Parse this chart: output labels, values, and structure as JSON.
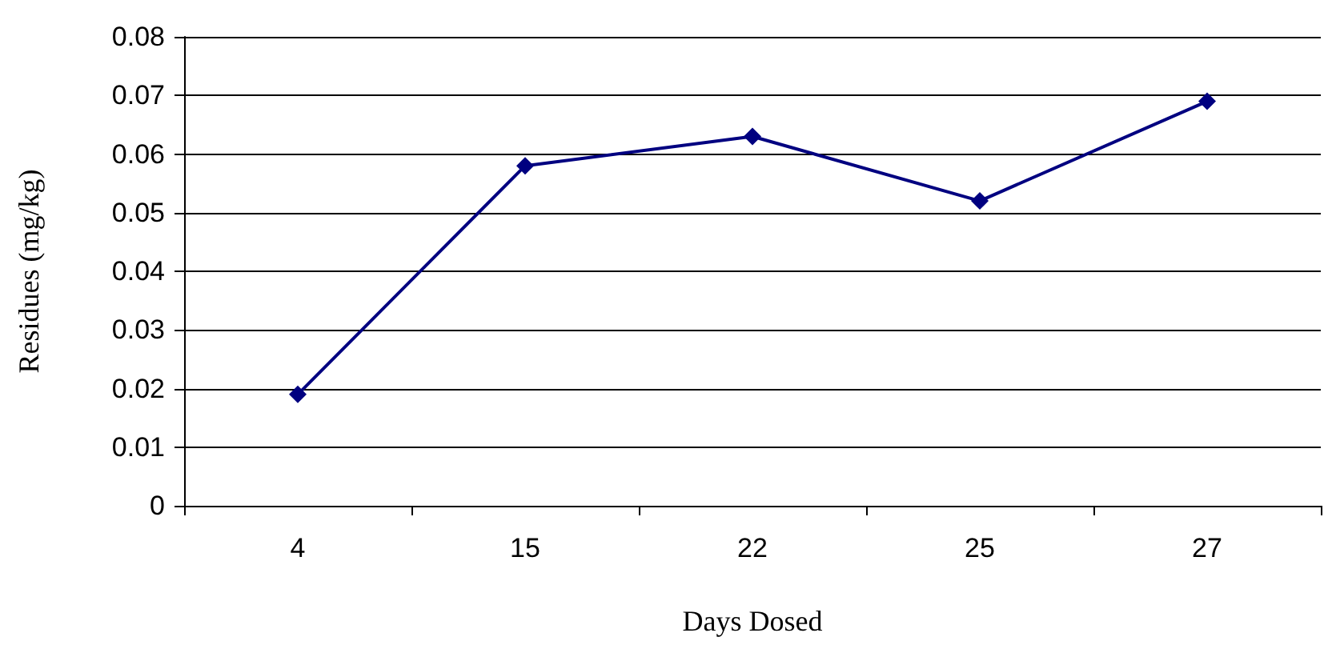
{
  "chart_data": {
    "type": "line",
    "xlabel": "Days Dosed",
    "ylabel": "Residues (mg/kg)",
    "categories": [
      "4",
      "15",
      "22",
      "25",
      "27"
    ],
    "series": [
      {
        "color": "#000080",
        "values": [
          0.019,
          0.058,
          0.063,
          0.052,
          0.069
        ]
      }
    ],
    "ylim": [
      0,
      0.08
    ],
    "yticks": [
      0,
      0.01,
      0.02,
      0.03,
      0.04,
      0.05,
      0.06,
      0.07,
      0.08
    ],
    "grid": "y",
    "marker": "diamond",
    "line_style": "solid"
  }
}
